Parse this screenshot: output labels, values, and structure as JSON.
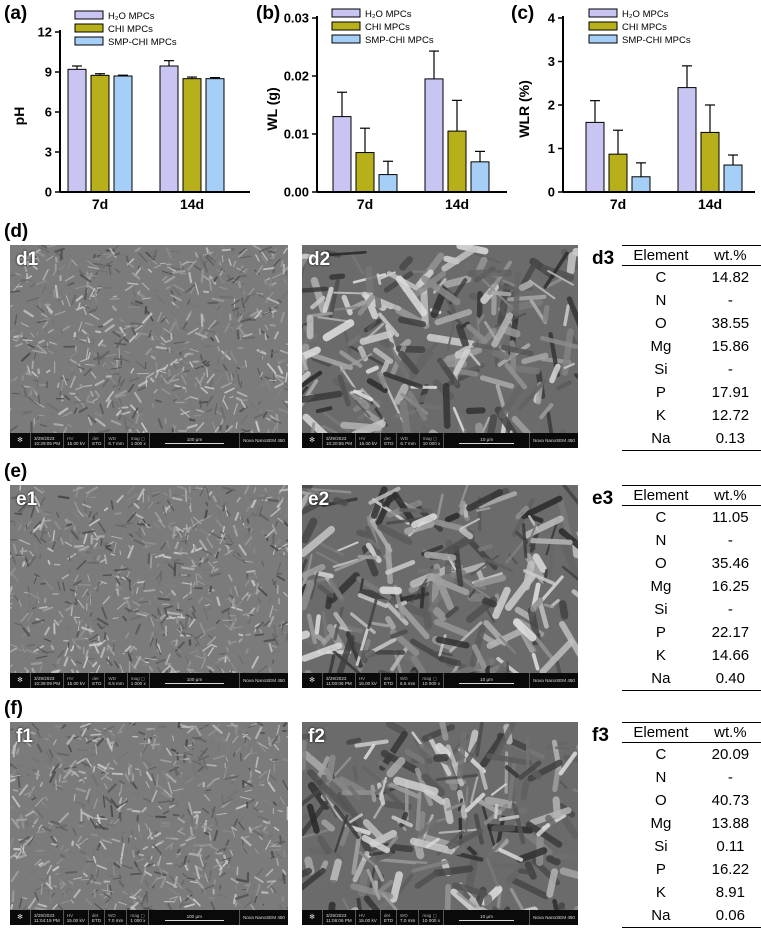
{
  "chart_data": [
    {
      "panel": "(a)",
      "type": "bar",
      "ylabel": "pH",
      "ylim": [
        0,
        12
      ],
      "yticks": [
        0,
        3,
        6,
        9,
        12
      ],
      "categories": [
        "7d",
        "14d"
      ],
      "legend_position": "top-left",
      "series": [
        {
          "name": "H₂O MPCs",
          "values": [
            9.2,
            9.45
          ],
          "errors": [
            0.25,
            0.4
          ]
        },
        {
          "name": "CHI MPCs",
          "values": [
            8.75,
            8.5
          ],
          "errors": [
            0.12,
            0.12
          ]
        },
        {
          "name": "SMP-CHI MPCs",
          "values": [
            8.7,
            8.5
          ],
          "errors": [
            0.06,
            0.08
          ]
        }
      ]
    },
    {
      "panel": "(b)",
      "type": "bar",
      "ylabel": "WL  (g)",
      "ylim": [
        0,
        0.03
      ],
      "yticks": [
        "0.00",
        "0.01",
        "0.02",
        "0.03"
      ],
      "categories": [
        "7d",
        "14d"
      ],
      "legend_position": "top-right",
      "series": [
        {
          "name": "H₂O MPCs",
          "values": [
            0.013,
            0.0195
          ],
          "errors": [
            0.0042,
            0.0048
          ]
        },
        {
          "name": "CHI MPCs",
          "values": [
            0.0068,
            0.0105
          ],
          "errors": [
            0.0042,
            0.0053
          ]
        },
        {
          "name": "SMP-CHI MPCs",
          "values": [
            0.003,
            0.0052
          ],
          "errors": [
            0.0023,
            0.0018
          ]
        }
      ]
    },
    {
      "panel": "(c)",
      "type": "bar",
      "ylabel": "WLR (%)",
      "ylim": [
        0,
        4
      ],
      "yticks": [
        0,
        1,
        2,
        3,
        4
      ],
      "categories": [
        "7d",
        "14d"
      ],
      "legend_position": "top-right",
      "series": [
        {
          "name": "H₂O MPCs",
          "values": [
            1.6,
            2.4
          ],
          "errors": [
            0.5,
            0.5
          ]
        },
        {
          "name": "CHI MPCs",
          "values": [
            0.87,
            1.37
          ],
          "errors": [
            0.55,
            0.63
          ]
        },
        {
          "name": "SMP-CHI MPCs",
          "values": [
            0.35,
            0.62
          ],
          "errors": [
            0.32,
            0.23
          ]
        }
      ]
    }
  ],
  "colors": {
    "h2o": "#c9c5f2",
    "chi": "#b7b01a",
    "smp": "#a6cff7"
  },
  "sections": [
    {
      "label": "(d)",
      "left": {
        "label": "d1",
        "date": "3/29/2023",
        "time": "10:29:05 PM",
        "hv": "15.00 kV",
        "det": "ETD",
        "wd": "6.7 mm",
        "mag": "1 000 x",
        "scale": "100 μm",
        "instrument": "Nova NanoSEM 450"
      },
      "right": {
        "label": "d2",
        "date": "3/29/2023",
        "time": "10:20:55 PM",
        "hv": "15.00 kV",
        "det": "ETD",
        "wd": "6.7 mm",
        "mag": "10 000 x",
        "scale": "10 μm",
        "instrument": "Nova NanoSEM 450"
      },
      "table_label": "d3",
      "rows": [
        [
          "C",
          "14.82"
        ],
        [
          "N",
          "-"
        ],
        [
          "O",
          "38.55"
        ],
        [
          "Mg",
          "15.86"
        ],
        [
          "Si",
          "-"
        ],
        [
          "P",
          "17.91"
        ],
        [
          "K",
          "12.72"
        ],
        [
          "Na",
          "0.13"
        ]
      ]
    },
    {
      "label": "(e)",
      "left": {
        "label": "e1",
        "date": "3/29/2023",
        "time": "10:39:09 PM",
        "hv": "15.00 kV",
        "det": "ETD",
        "wd": "6.5 mm",
        "mag": "1 000 x",
        "scale": "100 μm",
        "instrument": "Nova NanoSEM 450"
      },
      "right": {
        "label": "e2",
        "date": "3/29/2023",
        "time": "11:00:06 PM",
        "hv": "15.00 kV",
        "det": "ETD",
        "wd": "6.5 mm",
        "mag": "10 000 x",
        "scale": "10 μm",
        "instrument": "Nova NanoSEM 450"
      },
      "table_label": "e3",
      "rows": [
        [
          "C",
          "11.05"
        ],
        [
          "N",
          "-"
        ],
        [
          "O",
          "35.46"
        ],
        [
          "Mg",
          "16.25"
        ],
        [
          "Si",
          "-"
        ],
        [
          "P",
          "22.17"
        ],
        [
          "K",
          "14.66"
        ],
        [
          "Na",
          "0.40"
        ]
      ]
    },
    {
      "label": "(f)",
      "left": {
        "label": "f1",
        "date": "3/29/2023",
        "time": "11:04:19 PM",
        "hv": "15.00 kV",
        "det": "ETD",
        "wd": "7.0 mm",
        "mag": "1 000 x",
        "scale": "100 μm",
        "instrument": "Nova NanoSEM 450"
      },
      "right": {
        "label": "f2",
        "date": "3/29/2023",
        "time": "11:06:06 PM",
        "hv": "15.00 kV",
        "det": "ETD",
        "wd": "7.0 mm",
        "mag": "10 000 x",
        "scale": "10 μm",
        "instrument": "Nova NanoSEM 450"
      },
      "table_label": "f3",
      "rows": [
        [
          "C",
          "20.09"
        ],
        [
          "N",
          "-"
        ],
        [
          "O",
          "40.73"
        ],
        [
          "Mg",
          "13.88"
        ],
        [
          "Si",
          "0.11"
        ],
        [
          "P",
          "16.22"
        ],
        [
          "K",
          "8.91"
        ],
        [
          "Na",
          "0.06"
        ]
      ]
    }
  ],
  "table_header": {
    "element": "Element",
    "wt": "wt.%"
  },
  "info_keys": {
    "hv": "HV",
    "det": "det",
    "wd": "WD",
    "mag": "mag ▢"
  }
}
